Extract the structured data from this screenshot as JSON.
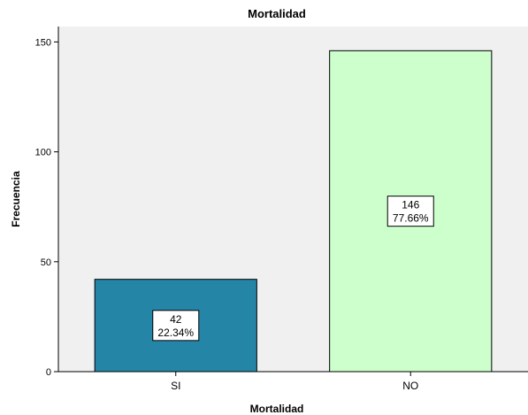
{
  "chart_data": {
    "type": "bar",
    "title": "Mortalidad",
    "xlabel": "Mortalidad",
    "ylabel": "Frecuencia",
    "categories": [
      "SI",
      "NO"
    ],
    "values": [
      42,
      146
    ],
    "data_labels": [
      {
        "count": "42",
        "percent": "22.34%"
      },
      {
        "count": "146",
        "percent": "77.66%"
      }
    ],
    "ylim": [
      0,
      157
    ],
    "yticks": [
      0,
      50,
      100,
      150
    ],
    "grid": false,
    "colors": [
      "#2585a7",
      "#ccffcc"
    ],
    "plot_background": "#f0f0f0"
  }
}
